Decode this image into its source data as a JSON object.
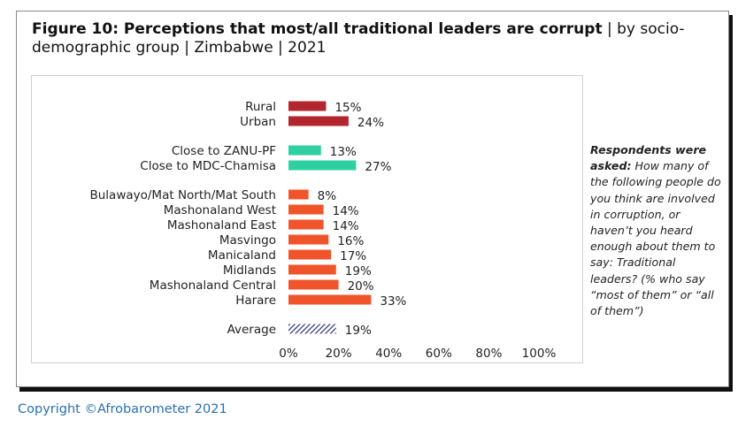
{
  "header": {
    "title_bold": "Figure 10: Perceptions that most/all traditional leaders are corrupt",
    "title_rest": " | by socio-demographic group | Zimbabwe | 2021"
  },
  "note": {
    "lead": "Respondents were asked:",
    "body": " How many of the following people do you think are involved in corruption, or haven’t you heard enough about them to say: Traditional leaders? (% who say “most of them” or “all of them”)"
  },
  "footer": {
    "copyright": "Copyright ©Afrobarometer 2021"
  },
  "colors": {
    "location": "#b4262d",
    "party": "#2ecfa1",
    "province": "#f0542b",
    "average": "#2b2f7a",
    "axis_text": "#222222"
  },
  "chart_data": {
    "type": "bar",
    "orientation": "horizontal",
    "categories": [
      "Rural",
      "Urban",
      "Close to ZANU-PF",
      "Close to MDC-Chamisa",
      "Bulawayo/Mat North/Mat South",
      "Mashonaland West",
      "Mashonaland East",
      "Masvingo",
      "Manicaland",
      "Midlands",
      "Mashonaland Central",
      "Harare",
      "Average"
    ],
    "values": [
      15,
      24,
      13,
      27,
      8,
      14,
      14,
      16,
      17,
      19,
      20,
      33,
      19
    ],
    "value_labels": [
      "15%",
      "24%",
      "13%",
      "27%",
      "8%",
      "14%",
      "14%",
      "16%",
      "17%",
      "19%",
      "20%",
      "33%",
      "19%"
    ],
    "groups": [
      "location",
      "location",
      "party",
      "party",
      "province",
      "province",
      "province",
      "province",
      "province",
      "province",
      "province",
      "province",
      "average"
    ],
    "xlim": [
      0,
      100
    ],
    "xticks": [
      "0%",
      "20%",
      "40%",
      "60%",
      "80%",
      "100%"
    ],
    "grid": false,
    "legend": "none"
  }
}
